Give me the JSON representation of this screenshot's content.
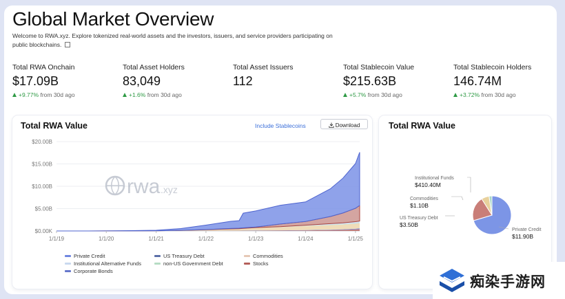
{
  "header": {
    "title": "Global Market Overview",
    "intro": "Welcome to RWA.xyz. Explore tokenized real-world assets and the investors, issuers, and service providers participating on public blockchains."
  },
  "stats": [
    {
      "label": "Total RWA Onchain",
      "value": "$17.09B",
      "delta": "+9.77%",
      "suffix": "from 30d ago"
    },
    {
      "label": "Total Asset Holders",
      "value": "83,049",
      "delta": "+1.6%",
      "suffix": "from 30d ago"
    },
    {
      "label": "Total Asset Issuers",
      "value": "112",
      "delta": "",
      "suffix": ""
    },
    {
      "label": "Total Stablecoin Value",
      "value": "$215.63B",
      "delta": "+5.7%",
      "suffix": "from 30d ago"
    },
    {
      "label": "Total Stablecoin Holders",
      "value": "146.74M",
      "delta": "+3.72%",
      "suffix": "from 30d ago"
    }
  ],
  "area_card": {
    "title": "Total RWA Value",
    "include_link": "Include Stablecoins",
    "download_label": "Download",
    "watermark": "rwa",
    "watermark_suffix": ".xyz"
  },
  "pie_card": {
    "title": "Total RWA Value"
  },
  "legend": [
    {
      "name": "Private Credit",
      "color": "#6f86e0"
    },
    {
      "name": "US Treasury Debt",
      "color": "#5b6ea8"
    },
    {
      "name": "Commodities",
      "color": "#e6c8b6"
    },
    {
      "name": "Institutional Alternative Funds",
      "color": "#c9d9ef"
    },
    {
      "name": "non-US Government Debt",
      "color": "#b6dcc4"
    },
    {
      "name": "Stocks",
      "color": "#b45f5a"
    },
    {
      "name": "Corporate Bonds",
      "color": "#6677cc"
    }
  ],
  "brand": {
    "text": "痴染手游网"
  },
  "chart_data": [
    {
      "type": "area",
      "title": "Total RWA Value",
      "x_ticks": [
        "1/1/19",
        "1/1/20",
        "1/1/21",
        "1/1/22",
        "1/1/23",
        "1/1/24",
        "1/1/25"
      ],
      "y_ticks": [
        "$20.00B",
        "$15.00B",
        "$10.00B",
        "$5.00B",
        "$0.00K"
      ],
      "ylim": [
        0,
        20
      ],
      "x": [
        "2019-01",
        "2019-07",
        "2020-01",
        "2020-07",
        "2021-01",
        "2021-07",
        "2022-01",
        "2022-07",
        "2022-09",
        "2022-10",
        "2023-01",
        "2023-07",
        "2024-01",
        "2024-07",
        "2024-10",
        "2025-01",
        "2025-02"
      ],
      "series": [
        {
          "name": "Stocks",
          "values": [
            0,
            0,
            0,
            0,
            0,
            0.01,
            0.02,
            0.03,
            0.03,
            0.04,
            0.05,
            0.08,
            0.12,
            0.2,
            0.25,
            0.35,
            0.4
          ]
        },
        {
          "name": "Corporate Bonds",
          "values": [
            0,
            0,
            0,
            0,
            0,
            0.01,
            0.02,
            0.03,
            0.03,
            0.04,
            0.05,
            0.06,
            0.08,
            0.1,
            0.12,
            0.15,
            0.2
          ]
        },
        {
          "name": "Commodities",
          "values": [
            0,
            0,
            0.01,
            0.02,
            0.05,
            0.1,
            0.2,
            0.35,
            0.4,
            0.45,
            0.6,
            0.7,
            0.9,
            1.0,
            1.05,
            1.1,
            1.1
          ]
        },
        {
          "name": "non-US Government Debt",
          "values": [
            0,
            0,
            0,
            0,
            0,
            0,
            0,
            0,
            0,
            0,
            0,
            0.02,
            0.05,
            0.08,
            0.1,
            0.1,
            0.1
          ]
        },
        {
          "name": "Institutional Alternative Funds",
          "values": [
            0,
            0,
            0,
            0,
            0,
            0,
            0.02,
            0.05,
            0.05,
            0.05,
            0.06,
            0.1,
            0.15,
            0.25,
            0.3,
            0.38,
            0.41
          ]
        },
        {
          "name": "US Treasury Debt",
          "values": [
            0,
            0,
            0,
            0,
            0,
            0.02,
            0.05,
            0.1,
            0.1,
            0.11,
            0.12,
            0.6,
            0.8,
            1.6,
            2.2,
            3.0,
            3.5
          ]
        },
        {
          "name": "Private Credit",
          "values": [
            0,
            0,
            0.01,
            0.05,
            0.1,
            0.4,
            1.0,
            1.6,
            1.7,
            3.3,
            3.6,
            4.2,
            4.4,
            6.2,
            7.8,
            10.0,
            11.9
          ]
        }
      ]
    },
    {
      "type": "pie",
      "title": "Total RWA Value",
      "labels": [
        "Private Credit",
        "US Treasury Debt",
        "Commodities",
        "Institutional Funds"
      ],
      "values": [
        11.9,
        3.5,
        1.1,
        0.4104
      ],
      "value_labels": [
        "$11.90B",
        "$3.50B",
        "$1.10B",
        "$410.40M"
      ],
      "colors": [
        "#7c95e6",
        "#c97e78",
        "#e8d19c",
        "#a9d8c8"
      ]
    }
  ]
}
